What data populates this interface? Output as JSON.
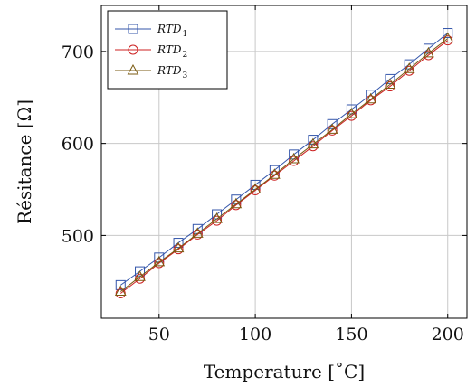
{
  "chart_data": {
    "type": "line",
    "title": "",
    "xlabel": "Temperature [˚C]",
    "ylabel": "Résitance [Ω]",
    "xlim": [
      20,
      210
    ],
    "ylim": [
      410,
      750
    ],
    "grid": true,
    "legend_position": "top-left",
    "x_ticks": [
      50,
      100,
      150,
      200
    ],
    "y_ticks": [
      500,
      600,
      700
    ],
    "x": [
      30,
      40,
      50,
      60,
      70,
      80,
      90,
      100,
      110,
      120,
      130,
      140,
      150,
      160,
      170,
      180,
      190,
      200
    ],
    "series": [
      {
        "name": "RTD",
        "subscript": "1",
        "marker": "square",
        "color": "#3355aa",
        "values": [
          446,
          461,
          476,
          492,
          507,
          523,
          539,
          555,
          571,
          588,
          604,
          621,
          637,
          653,
          670,
          686,
          703,
          720
        ]
      },
      {
        "name": "RTD",
        "subscript": "2",
        "marker": "circle",
        "color": "#cc2222",
        "values": [
          437,
          453,
          470,
          485,
          501,
          516,
          533,
          549,
          565,
          581,
          597,
          614,
          630,
          647,
          662,
          679,
          696,
          712
        ]
      },
      {
        "name": "RTD",
        "subscript": "3",
        "marker": "triangle",
        "color": "#7a5a10",
        "values": [
          439,
          455,
          471,
          486,
          502,
          518,
          534,
          550,
          566,
          583,
          599,
          615,
          632,
          648,
          664,
          681,
          698,
          714
        ]
      }
    ]
  }
}
